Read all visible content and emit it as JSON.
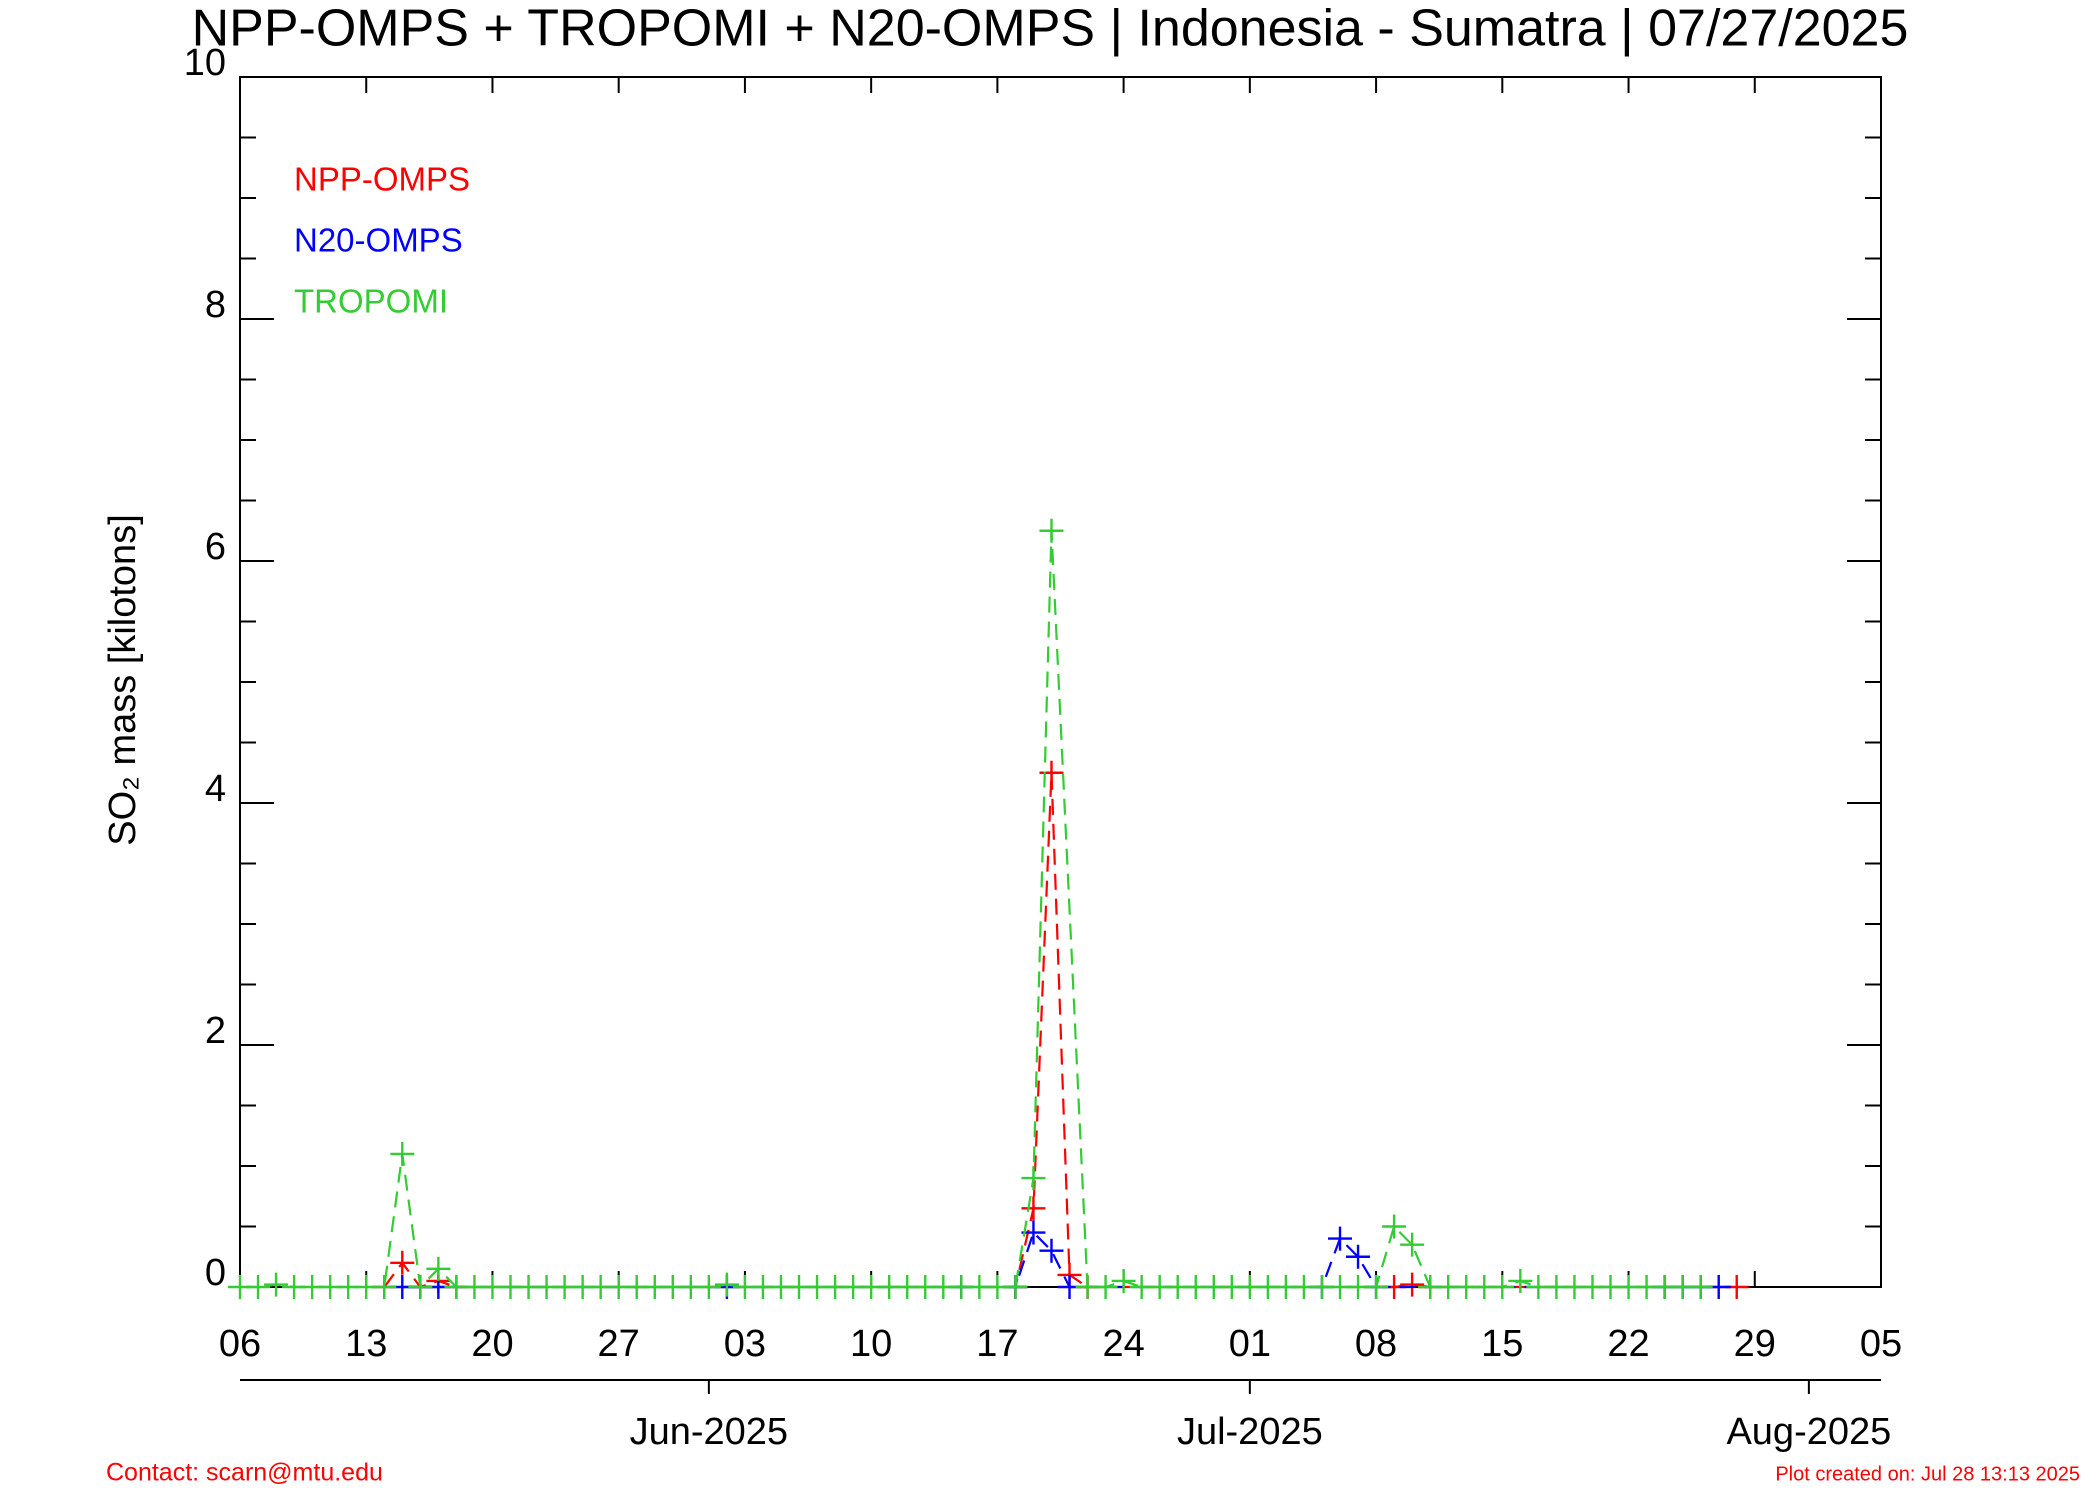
{
  "chart_data": {
    "type": "line",
    "title": "NPP-OMPS + TROPOMI + N20-OMPS | Indonesia - Sumatra | 07/27/2025",
    "y_label": "SO₂ mass [kilotons]",
    "xlim": [
      "2025-05-06",
      "2025-08-05"
    ],
    "xticks": [
      {
        "value": "2025-05-06",
        "label": "06"
      },
      {
        "value": "2025-05-13",
        "label": "13"
      },
      {
        "value": "2025-05-20",
        "label": "20"
      },
      {
        "value": "2025-05-27",
        "label": "27"
      },
      {
        "value": "2025-06-03",
        "label": "03"
      },
      {
        "value": "2025-06-10",
        "label": "10"
      },
      {
        "value": "2025-06-17",
        "label": "17"
      },
      {
        "value": "2025-06-24",
        "label": "24"
      },
      {
        "value": "2025-07-01",
        "label": "01"
      },
      {
        "value": "2025-07-08",
        "label": "08"
      },
      {
        "value": "2025-07-15",
        "label": "15"
      },
      {
        "value": "2025-07-22",
        "label": "22"
      },
      {
        "value": "2025-07-29",
        "label": "29"
      },
      {
        "value": "2025-08-05",
        "label": "05"
      }
    ],
    "month_ticks": [
      {
        "value": "2025-06-01",
        "label": "Jun-2025"
      },
      {
        "value": "2025-07-01",
        "label": "Jul-2025"
      },
      {
        "value": "2025-08-01",
        "label": "Aug-2025"
      }
    ],
    "ylim": [
      0,
      10
    ],
    "yticks": [
      0,
      2,
      4,
      6,
      8,
      10
    ],
    "legend": "top-left",
    "series": [
      {
        "name": "NPP-OMPS",
        "color": "#ff0000",
        "x": [
          "2025-05-14",
          "2025-05-15",
          "2025-05-16",
          "2025-05-17",
          "2025-05-18",
          "2025-06-18",
          "2025-06-19",
          "2025-06-20",
          "2025-06-21",
          "2025-06-22",
          "2025-07-09",
          "2025-07-10",
          "2025-07-11",
          "2025-07-28"
        ],
        "values": [
          0,
          0.2,
          0,
          0.05,
          0,
          0,
          0.65,
          4.25,
          0.1,
          0,
          0,
          0.02,
          0,
          0
        ]
      },
      {
        "name": "N20-OMPS",
        "color": "#0000ff",
        "x": [
          "2025-05-15",
          "2025-05-16",
          "2025-05-17",
          "2025-06-02",
          "2025-06-15",
          "2025-06-18",
          "2025-06-19",
          "2025-06-20",
          "2025-06-21",
          "2025-07-05",
          "2025-07-06",
          "2025-07-07",
          "2025-07-08",
          "2025-07-24",
          "2025-07-25",
          "2025-07-26",
          "2025-07-27"
        ],
        "values": [
          0,
          0,
          0,
          0,
          0,
          0,
          0.45,
          0.3,
          0,
          0,
          0.4,
          0.25,
          0,
          0,
          0,
          0,
          0
        ]
      },
      {
        "name": "TROPOMI",
        "color": "#33cc33",
        "x": [
          "2025-05-06",
          "2025-05-07",
          "2025-05-08",
          "2025-05-09",
          "2025-05-10",
          "2025-05-11",
          "2025-05-12",
          "2025-05-13",
          "2025-05-14",
          "2025-05-15",
          "2025-05-16",
          "2025-05-17",
          "2025-05-18",
          "2025-05-19",
          "2025-05-20",
          "2025-05-21",
          "2025-05-22",
          "2025-05-23",
          "2025-05-24",
          "2025-05-25",
          "2025-05-26",
          "2025-05-27",
          "2025-05-28",
          "2025-05-29",
          "2025-05-30",
          "2025-05-31",
          "2025-06-01",
          "2025-06-02",
          "2025-06-03",
          "2025-06-04",
          "2025-06-05",
          "2025-06-06",
          "2025-06-07",
          "2025-06-08",
          "2025-06-09",
          "2025-06-10",
          "2025-06-11",
          "2025-06-12",
          "2025-06-13",
          "2025-06-14",
          "2025-06-15",
          "2025-06-16",
          "2025-06-17",
          "2025-06-18",
          "2025-06-19",
          "2025-06-20",
          "2025-06-22",
          "2025-06-23",
          "2025-06-24",
          "2025-06-25",
          "2025-06-26",
          "2025-06-27",
          "2025-06-28",
          "2025-06-29",
          "2025-06-30",
          "2025-07-01",
          "2025-07-02",
          "2025-07-03",
          "2025-07-04",
          "2025-07-05",
          "2025-07-06",
          "2025-07-07",
          "2025-07-08",
          "2025-07-09",
          "2025-07-10",
          "2025-07-11",
          "2025-07-12",
          "2025-07-13",
          "2025-07-14",
          "2025-07-15",
          "2025-07-16",
          "2025-07-17",
          "2025-07-18",
          "2025-07-19",
          "2025-07-20",
          "2025-07-21",
          "2025-07-22",
          "2025-07-23",
          "2025-07-24",
          "2025-07-25",
          "2025-07-26"
        ],
        "values": [
          0,
          0,
          0.02,
          0,
          0,
          0,
          0,
          0,
          0,
          1.1,
          0,
          0.15,
          0,
          0,
          0,
          0,
          0,
          0,
          0,
          0,
          0,
          0,
          0,
          0,
          0,
          0,
          0,
          0.02,
          0,
          0,
          0,
          0,
          0,
          0,
          0,
          0,
          0,
          0,
          0,
          0,
          0,
          0,
          0,
          0,
          0.9,
          6.25,
          0,
          0,
          0.05,
          0,
          0,
          0,
          0,
          0,
          0,
          0,
          0,
          0,
          0,
          0,
          0,
          0,
          0,
          0.5,
          0.35,
          0,
          0,
          0,
          0,
          0,
          0.05,
          0,
          0,
          0,
          0,
          0,
          0,
          0,
          0,
          0,
          0
        ]
      }
    ]
  },
  "footer": {
    "contact": "Contact: scarn@mtu.edu",
    "created": "Plot created on: Jul 28 13:13 2025"
  }
}
